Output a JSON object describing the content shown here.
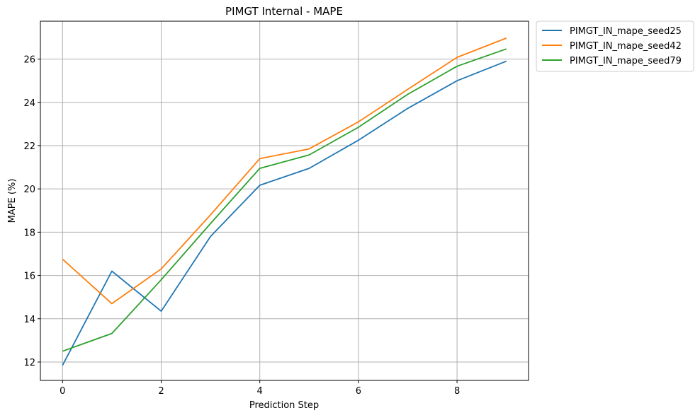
{
  "chart_data": {
    "type": "line",
    "title": "PIMGT Internal - MAPE",
    "xlabel": "Prediction Step",
    "ylabel": "MAPE (%)",
    "xlim": [
      -0.45,
      9.45
    ],
    "ylim": [
      11.15,
      27.75
    ],
    "x_ticks": [
      0,
      2,
      4,
      6,
      8
    ],
    "y_ticks": [
      12,
      14,
      16,
      18,
      20,
      22,
      24,
      26
    ],
    "grid": true,
    "legend_position": "outside-top-right",
    "x": [
      0,
      1,
      2,
      3,
      4,
      5,
      6,
      7,
      8,
      9
    ],
    "series": [
      {
        "name": "PIMGT_IN_mape_seed25",
        "color": "#1f77b4",
        "values": [
          11.85,
          16.2,
          14.35,
          17.8,
          20.17,
          20.95,
          22.25,
          23.72,
          25.0,
          25.9
        ]
      },
      {
        "name": "PIMGT_IN_mape_seed42",
        "color": "#ff7f0e",
        "values": [
          16.75,
          14.7,
          16.3,
          18.8,
          21.4,
          21.85,
          23.1,
          24.6,
          26.08,
          26.97
        ]
      },
      {
        "name": "PIMGT_IN_mape_seed79",
        "color": "#2ca02c",
        "values": [
          12.5,
          13.32,
          15.8,
          18.4,
          20.95,
          21.57,
          22.85,
          24.37,
          25.67,
          26.47
        ]
      }
    ]
  }
}
